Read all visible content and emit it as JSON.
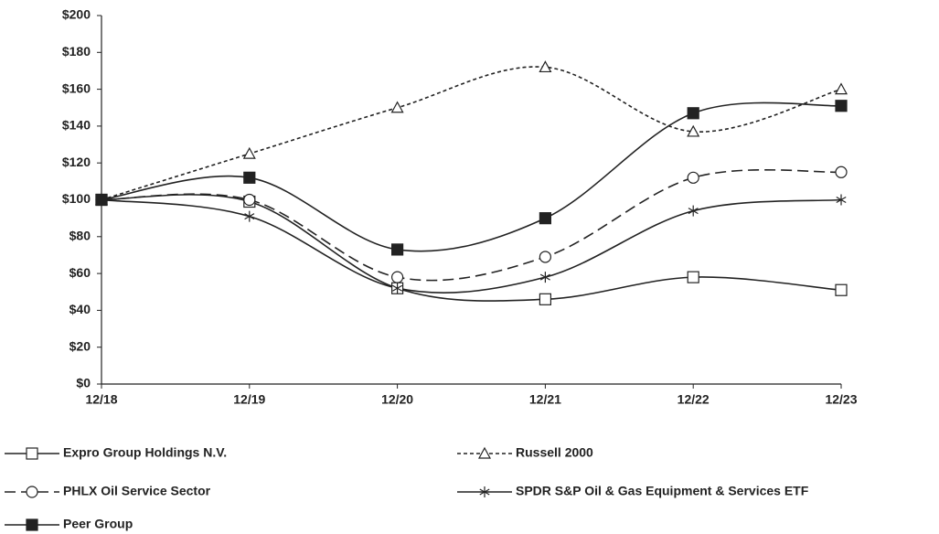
{
  "chart_data": {
    "type": "line",
    "categories": [
      "12/18",
      "12/19",
      "12/20",
      "12/21",
      "12/22",
      "12/23"
    ],
    "series": [
      {
        "name": "Expro Group Holdings N.V.",
        "color": "#222222",
        "dash": "solid",
        "marker": "square-open",
        "values": [
          100,
          99,
          52,
          46,
          58,
          51
        ]
      },
      {
        "name": "Russell 2000",
        "color": "#222222",
        "dash": "short-dash",
        "marker": "triangle-open",
        "values": [
          100,
          125,
          150,
          172,
          137,
          160
        ]
      },
      {
        "name": "PHLX Oil Service Sector",
        "color": "#222222",
        "dash": "long-dash",
        "marker": "circle-open",
        "values": [
          100,
          100,
          58,
          69,
          112,
          115
        ]
      },
      {
        "name": "SPDR S&P Oil & Gas Equipment & Services ETF",
        "color": "#222222",
        "dash": "solid",
        "marker": "asterisk",
        "values": [
          100,
          91,
          52,
          58,
          94,
          100
        ]
      },
      {
        "name": "Peer Group",
        "color": "#222222",
        "dash": "solid",
        "marker": "square-filled",
        "values": [
          100,
          112,
          73,
          90,
          147,
          151
        ]
      }
    ],
    "ylim": [
      0,
      200
    ],
    "yticks": [
      {
        "value": 0,
        "label": "$0"
      },
      {
        "value": 20,
        "label": "$20"
      },
      {
        "value": 40,
        "label": "$40"
      },
      {
        "value": 60,
        "label": "$60"
      },
      {
        "value": 80,
        "label": "$80"
      },
      {
        "value": 100,
        "label": "$100"
      },
      {
        "value": 120,
        "label": "$120"
      },
      {
        "value": 140,
        "label": "$140"
      },
      {
        "value": 160,
        "label": "$160"
      },
      {
        "value": 180,
        "label": "$180"
      },
      {
        "value": 200,
        "label": "$200"
      }
    ],
    "grid": false
  }
}
